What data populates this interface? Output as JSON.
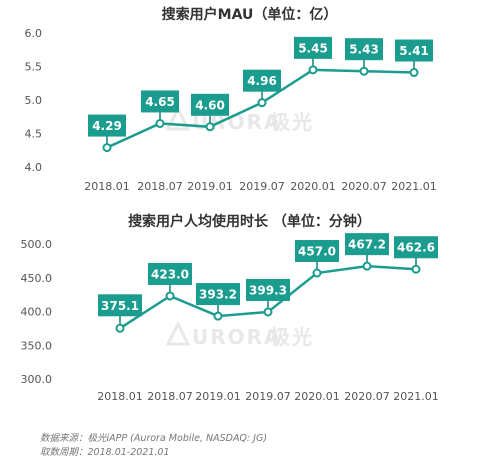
{
  "colors": {
    "accent": "#1a9c8e",
    "dark_accent": "#138076",
    "tick": "#555555",
    "title": "#333333"
  },
  "watermark": {
    "brand": "URORA",
    "cn": "极光",
    "icon": "triangle-logo-icon"
  },
  "chart_data": [
    {
      "type": "line",
      "title": "搜索用户MAU（单位：亿）",
      "categories": [
        "2018.01",
        "2018.07",
        "2019.01",
        "2019.07",
        "2020.01",
        "2020.07",
        "2021.01"
      ],
      "values": [
        4.29,
        4.65,
        4.6,
        4.96,
        5.45,
        5.43,
        5.41
      ],
      "labels": [
        "4.29",
        "4.65",
        "4.60",
        "4.96",
        "5.45",
        "5.43",
        "5.41"
      ],
      "yticks": [
        "6.0",
        "5.5",
        "5.0",
        "4.5",
        "4.0"
      ],
      "ylim": [
        4.0,
        6.0
      ],
      "grid": false
    },
    {
      "type": "line",
      "title": "搜索用户人均使用时长 （单位：分钟）",
      "categories": [
        "2018.01",
        "2018.07",
        "2019.01",
        "2019.07",
        "2020.01",
        "2020.07",
        "2021.01"
      ],
      "values": [
        375.1,
        423.0,
        393.2,
        399.3,
        457.0,
        467.2,
        462.6
      ],
      "labels": [
        "375.1",
        "423.0",
        "393.2",
        "399.3",
        "457.0",
        "467.2",
        "462.6"
      ],
      "yticks": [
        "500.0",
        "450.0",
        "400.0",
        "350.0",
        "300.0"
      ],
      "ylim": [
        300,
        500
      ],
      "grid": false
    }
  ],
  "footer": {
    "source": "数据来源：极光iAPP (Aurora Mobile, NASDAQ: JG)",
    "period": "取数周期：2018.01-2021.01"
  }
}
